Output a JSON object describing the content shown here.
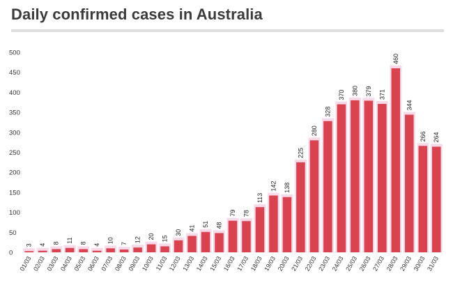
{
  "chart_data": {
    "type": "bar",
    "title": "Daily confirmed cases in Australia",
    "xlabel": "",
    "ylabel": "",
    "ylim": [
      0,
      500
    ],
    "yticks": [
      0,
      50,
      100,
      150,
      200,
      250,
      300,
      350,
      400,
      450,
      500
    ],
    "grid": false,
    "legend": "none",
    "categories": [
      "01/03",
      "02/03",
      "03/03",
      "04/03",
      "05/03",
      "06/03",
      "07/03",
      "08/03",
      "09/03",
      "10/03",
      "11/03",
      "12/03",
      "13/03",
      "14/03",
      "15/03",
      "16/03",
      "17/03",
      "18/03",
      "19/03",
      "20/03",
      "21/03",
      "22/03",
      "23/03",
      "24/03",
      "25/03",
      "26/03",
      "27/03",
      "28/03",
      "29/03",
      "30/03",
      "31/03"
    ],
    "values": [
      3,
      4,
      8,
      11,
      8,
      4,
      10,
      7,
      12,
      20,
      15,
      30,
      41,
      51,
      48,
      79,
      78,
      113,
      142,
      138,
      225,
      280,
      328,
      370,
      380,
      379,
      371,
      460,
      344,
      266,
      264
    ],
    "colors": {
      "bar": "#d9434f",
      "bar_shadow": "#f7d5e8",
      "axis_text": "#333333",
      "title": "#3b3b3b"
    }
  }
}
